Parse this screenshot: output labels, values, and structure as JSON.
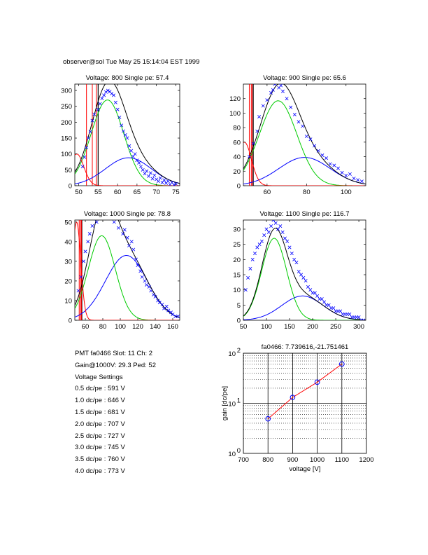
{
  "header": {
    "text": "observer@sol  Tue May 25 15:14:04 EST 1999"
  },
  "info": {
    "lines": [
      "PMT fa0466 Slot: 11 Ch: 2",
      "Gain@1000V: 29.3 Ped: 52",
      "Voltage Settings",
      "0.5 dc/pe : 591 V",
      "1.0 dc/pe : 646 V",
      "1.5 dc/pe : 681 V",
      "2.0 dc/pe : 707 V",
      "2.5 dc/pe : 727 V",
      "3.0 dc/pe : 745 V",
      "3.5 dc/pe : 760 V",
      "4.0 dc/pe : 773 V"
    ]
  },
  "colors": {
    "data": "#0000ff",
    "fit_total": "#000000",
    "fit_single": "#00cc00",
    "fit_double": "#0000ff",
    "pedestal": "#ff0000"
  },
  "chart_data": [
    {
      "type": "scatter",
      "title": "Voltage: 800 Single pe: 57.4",
      "xlim": [
        49,
        76
      ],
      "ylim": [
        0,
        320
      ],
      "xticks": [
        50,
        55,
        60,
        65,
        70,
        75
      ],
      "yticks": [
        0,
        50,
        100,
        150,
        200,
        250,
        300
      ],
      "fit": {
        "ped": 49.5,
        "ped_amp": 100,
        "ped_sigma": 0.3,
        "g1_mu": 57.4,
        "g1_amp": 270,
        "g1_sigma": 4.2,
        "g2_mu": 62.8,
        "g2_amp": 88,
        "g2_sigma": 5.9
      },
      "pedestal_edge": [
        55,
        52,
        53.5,
        54.5
      ],
      "points_x": [
        51,
        51.5,
        52,
        52.5,
        53,
        53.5,
        54,
        55,
        55.5,
        56,
        56.5,
        57,
        57.5,
        58,
        58.5,
        59,
        59.5,
        60,
        60.5,
        61,
        61.5,
        62,
        62.5,
        63,
        63.5,
        64,
        64.5,
        65,
        65.5,
        66,
        66.5,
        67,
        67.5,
        68,
        68.5,
        69,
        69.5,
        70,
        70.5,
        71,
        71.5,
        72,
        72.5,
        73,
        73.5,
        74,
        74.5,
        75
      ],
      "points_y": [
        60,
        90,
        120,
        150,
        170,
        205,
        225,
        240,
        258,
        275,
        285,
        295,
        300,
        296,
        290,
        285,
        262,
        240,
        215,
        190,
        172,
        160,
        150,
        125,
        110,
        92,
        100,
        80,
        72,
        60,
        50,
        38,
        46,
        30,
        40,
        22,
        33,
        20,
        14,
        24,
        10,
        18,
        8,
        14,
        4,
        10,
        3,
        6
      ]
    },
    {
      "type": "scatter",
      "title": "Voltage: 900 Single pe: 65.6",
      "xlim": [
        48,
        110
      ],
      "ylim": [
        0,
        140
      ],
      "xticks": [
        60,
        80,
        100
      ],
      "yticks": [
        0,
        20,
        40,
        60,
        80,
        100,
        120
      ],
      "fit": {
        "ped": 48.5,
        "ped_amp": 60,
        "ped_sigma": 0.6,
        "g1_mu": 65.6,
        "g1_amp": 117,
        "g1_sigma": 9.5,
        "g2_mu": 79,
        "g2_amp": 39,
        "g2_sigma": 13
      },
      "pedestal_edge": [
        53,
        51,
        52,
        52.5
      ],
      "points_x": [
        51,
        53,
        55,
        56,
        58,
        60,
        62,
        63,
        64,
        66,
        67,
        68,
        70,
        72,
        74,
        76,
        78,
        80,
        82,
        84,
        86,
        88,
        90,
        92,
        94,
        96,
        98,
        100,
        102,
        104,
        106,
        108
      ],
      "points_y": [
        40,
        58,
        75,
        95,
        110,
        118,
        128,
        132,
        140,
        135,
        138,
        130,
        120,
        108,
        98,
        88,
        82,
        68,
        64,
        55,
        48,
        42,
        38,
        30,
        28,
        24,
        18,
        14,
        16,
        10,
        8,
        6
      ]
    },
    {
      "type": "scatter",
      "title": "Voltage: 1000 Single pe: 78.8",
      "xlim": [
        48,
        168
      ],
      "ylim": [
        0,
        51
      ],
      "xticks": [
        60,
        80,
        100,
        120,
        140,
        160
      ],
      "yticks": [
        0,
        10,
        20,
        30,
        40,
        50
      ],
      "fit": {
        "ped": 50,
        "ped_amp": 50,
        "ped_sigma": 0.8,
        "g1_mu": 78.8,
        "g1_amp": 43,
        "g1_sigma": 15.5,
        "g2_mu": 107,
        "g2_amp": 33,
        "g2_sigma": 24
      },
      "pedestal_edge": [
        56,
        53,
        54.5,
        55.5
      ],
      "points_x": [
        52,
        55,
        58,
        60,
        63,
        65,
        68,
        70,
        73,
        75,
        78,
        80,
        83,
        85,
        88,
        90,
        93,
        95,
        98,
        100,
        103,
        105,
        108,
        110,
        113,
        115,
        118,
        120,
        123,
        125,
        128,
        130,
        133,
        135,
        138,
        140,
        143,
        145,
        148,
        150,
        153,
        155,
        158,
        160,
        163,
        166
      ],
      "points_y": [
        15,
        22,
        30,
        35,
        40,
        44,
        48,
        52,
        50,
        55,
        58,
        60,
        56,
        57,
        54,
        58,
        50,
        55,
        47,
        52,
        44,
        46,
        42,
        38,
        40,
        36,
        31,
        28,
        25,
        22,
        20,
        18,
        17,
        15,
        13,
        12,
        10,
        9,
        8,
        6,
        7,
        5,
        4,
        3,
        2,
        2
      ]
    },
    {
      "type": "scatter",
      "title": "Voltage: 1100 Single pe: 116.7",
      "xlim": [
        50,
        315
      ],
      "ylim": [
        0,
        33
      ],
      "xticks": [
        50,
        100,
        150,
        200,
        250,
        300
      ],
      "yticks": [
        0,
        5,
        10,
        15,
        20,
        25,
        30
      ],
      "fit": {
        "ped": 50,
        "ped_amp": 0,
        "ped_sigma": 1,
        "g1_mu": 116.7,
        "g1_amp": 27,
        "g1_sigma": 27,
        "g2_mu": 178,
        "g2_amp": 8,
        "g2_sigma": 45
      },
      "pedestal_edge": [],
      "points_x": [
        55,
        60,
        65,
        70,
        75,
        80,
        85,
        90,
        95,
        100,
        105,
        110,
        115,
        120,
        125,
        130,
        135,
        140,
        145,
        150,
        155,
        160,
        165,
        170,
        175,
        180,
        185,
        190,
        195,
        200,
        205,
        210,
        215,
        220,
        225,
        230,
        235,
        240,
        245,
        250,
        255,
        260,
        265,
        270,
        275,
        280,
        285,
        290,
        295,
        300,
        305,
        310
      ],
      "points_y": [
        10,
        14,
        17,
        20,
        22,
        24,
        25,
        26,
        28,
        30,
        29,
        31,
        33,
        32,
        30,
        31,
        29,
        27,
        26,
        24,
        22,
        20,
        19,
        16,
        15,
        14,
        13,
        11,
        10,
        9,
        9,
        8,
        7,
        7,
        6,
        5,
        5,
        4,
        4,
        3,
        3,
        3,
        2,
        2,
        2,
        2,
        1,
        1,
        1,
        1,
        0,
        0
      ]
    },
    {
      "type": "line",
      "title": "fa0466: 7.739616,-21.751461",
      "xlabel": "voltage [V]",
      "ylabel": "gain [dc/pe]",
      "xlim": [
        700,
        1200
      ],
      "ylim": [
        1,
        100
      ],
      "yscale": "log",
      "xticks": [
        700,
        800,
        900,
        1000,
        1100,
        1200
      ],
      "yticks": [
        1,
        10,
        100
      ],
      "ytick_labels": [
        "10^0",
        "10^1",
        "10^2"
      ],
      "x": [
        800,
        900,
        1000,
        1100
      ],
      "y": [
        4.9,
        13.1,
        26.4,
        60.8
      ]
    }
  ]
}
